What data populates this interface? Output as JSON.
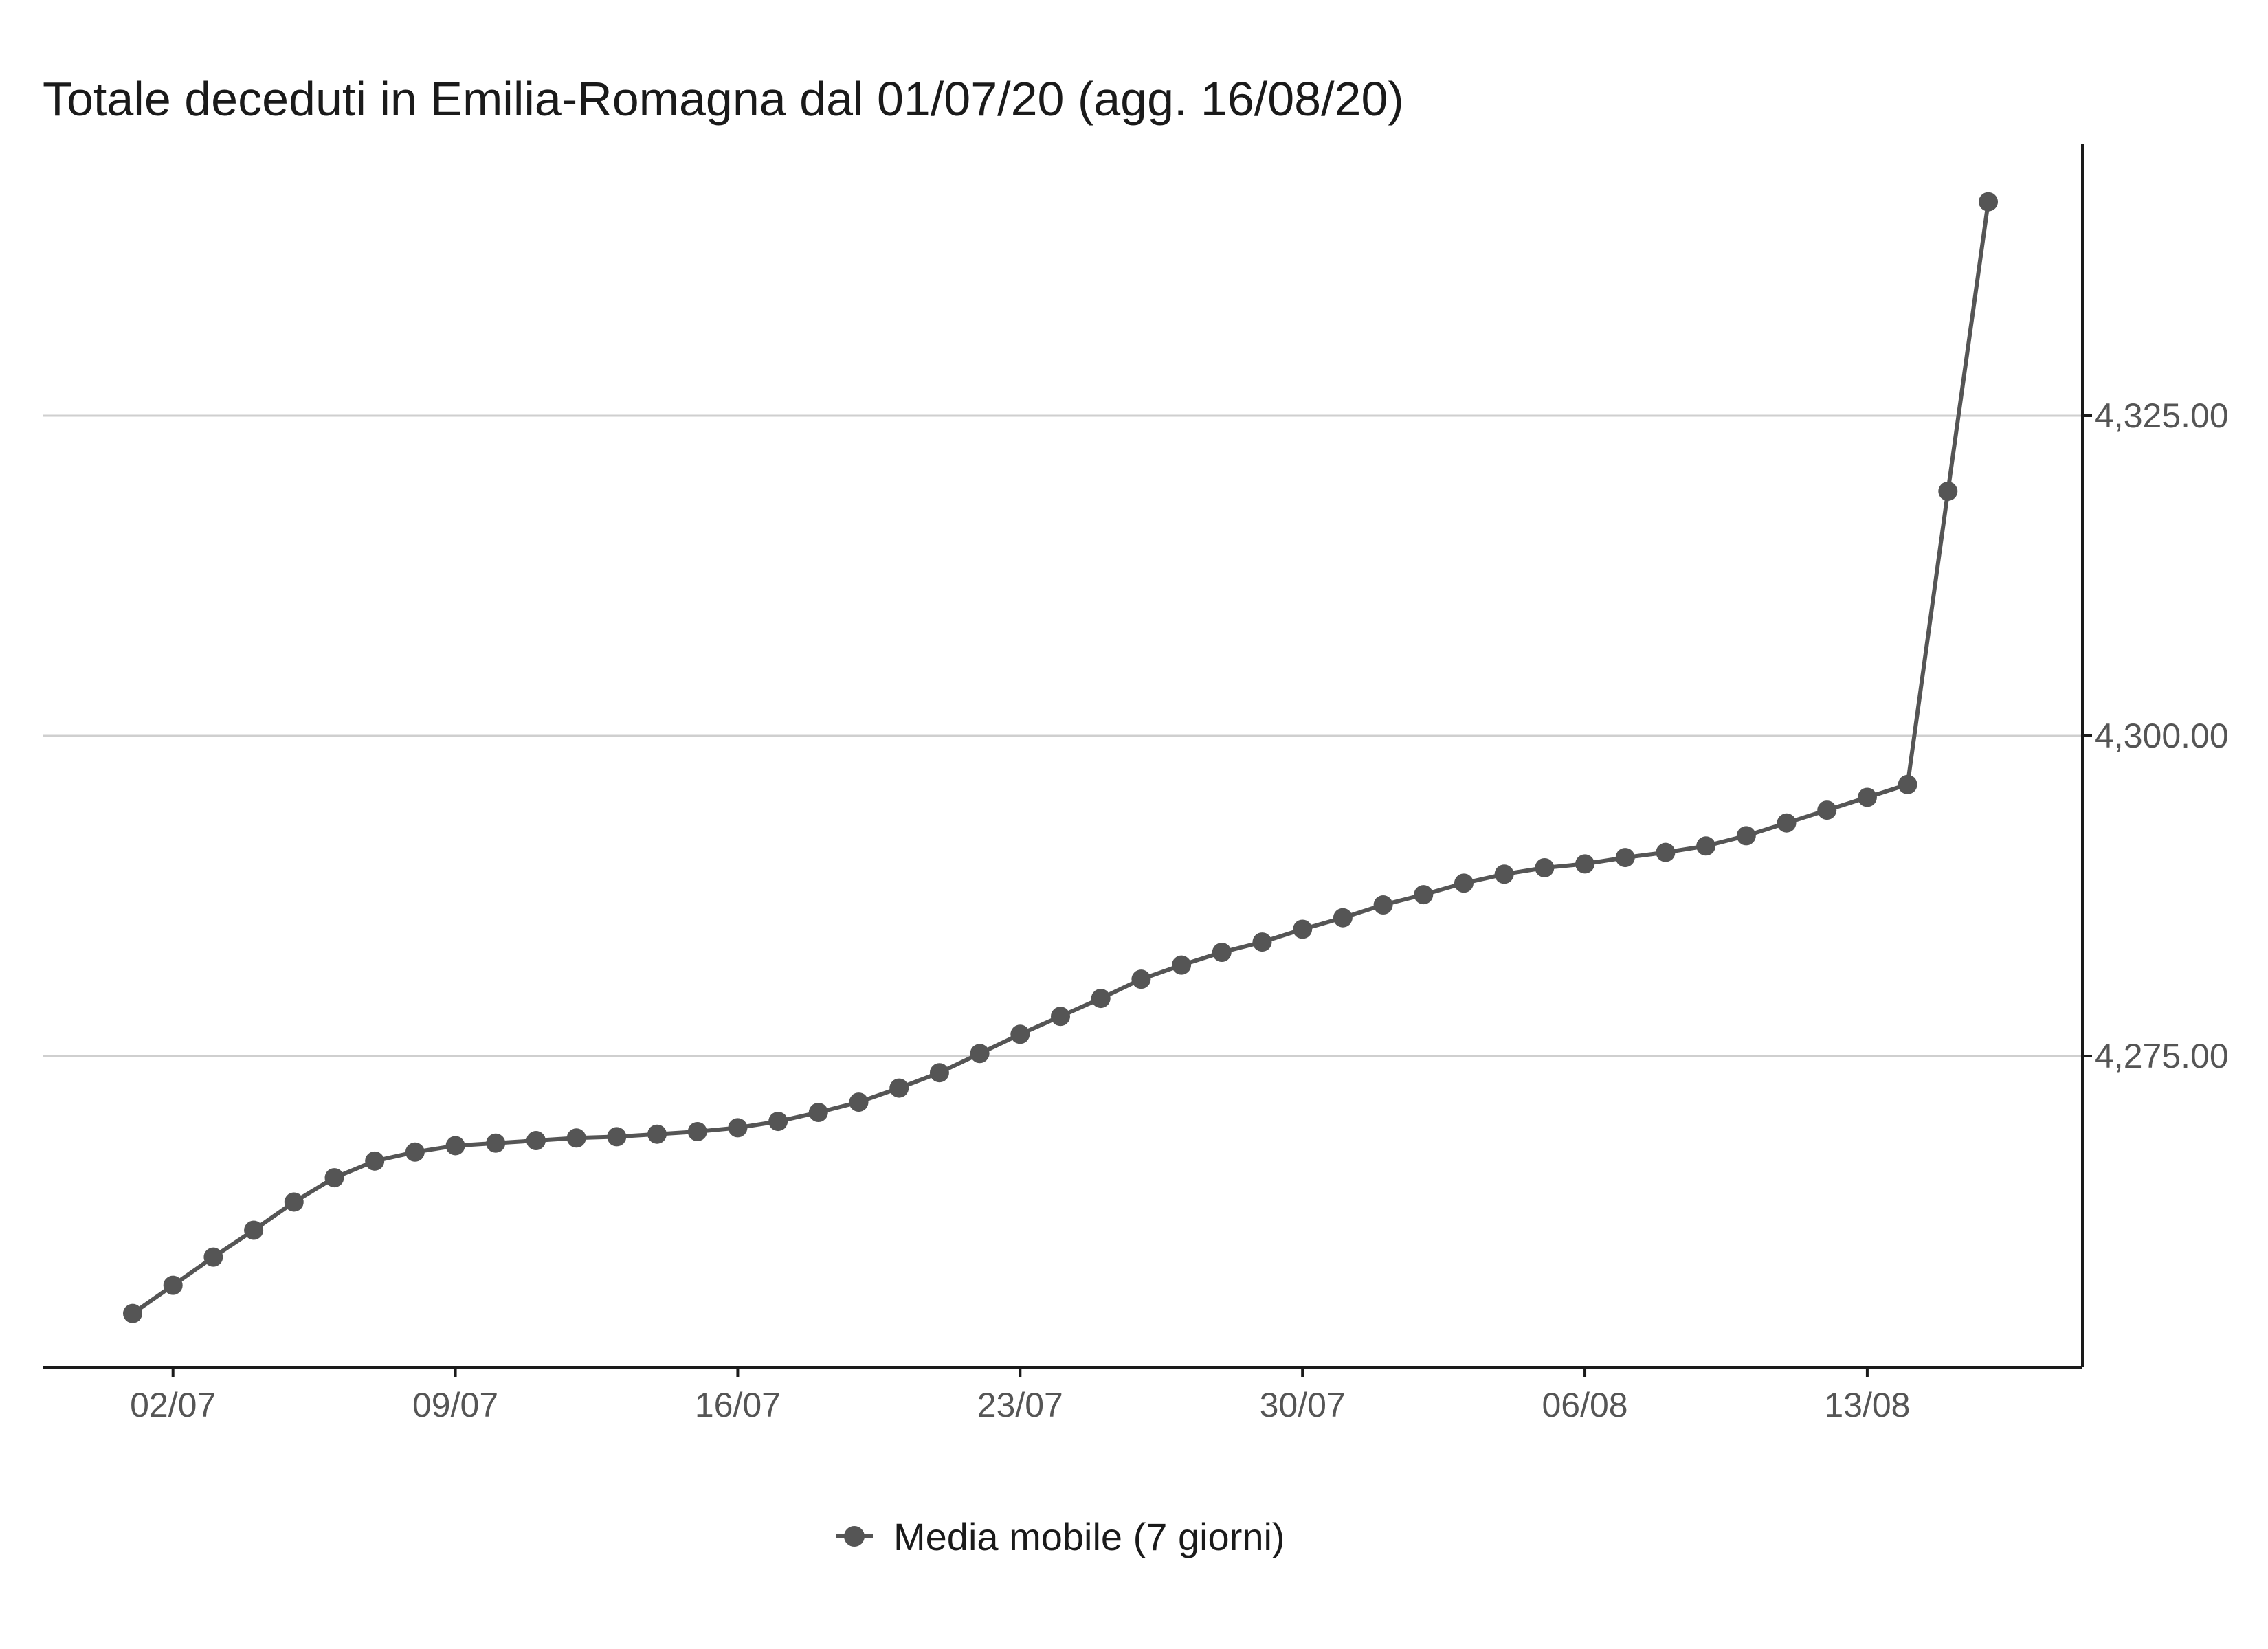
{
  "chart_data": {
    "type": "line",
    "title": "Totale deceduti in Emilia-Romagna dal 01/07/20 (agg. 16/08/20)",
    "xlabel": "",
    "ylabel": "",
    "x": [
      "01/07",
      "02/07",
      "03/07",
      "04/07",
      "05/07",
      "06/07",
      "07/07",
      "08/07",
      "09/07",
      "10/07",
      "11/07",
      "12/07",
      "13/07",
      "14/07",
      "15/07",
      "16/07",
      "17/07",
      "18/07",
      "19/07",
      "20/07",
      "21/07",
      "22/07",
      "23/07",
      "24/07",
      "25/07",
      "26/07",
      "27/07",
      "28/07",
      "29/07",
      "30/07",
      "31/07",
      "01/08",
      "02/08",
      "03/08",
      "04/08",
      "05/08",
      "06/08",
      "07/08",
      "08/08",
      "09/08",
      "10/08",
      "11/08",
      "12/08",
      "13/08",
      "14/08",
      "15/08",
      "16/08"
    ],
    "x_ticks": [
      "02/07",
      "09/07",
      "16/07",
      "23/07",
      "30/07",
      "06/08",
      "13/08"
    ],
    "y_ticks": [
      4275,
      4300,
      4325
    ],
    "y_tick_labels": [
      "4,275.00",
      "4,300.00",
      "4,325.00"
    ],
    "ylim": [
      4254.7,
      4350.3
    ],
    "y_axis_position": "right",
    "grid": "horizontal",
    "legend_position": "bottom",
    "series": [
      {
        "name": "Media mobile (7 giorni)",
        "color": "#555555",
        "marker": "circle",
        "values": [
          4254.9,
          4257.1,
          4259.3,
          4261.4,
          4263.6,
          4265.5,
          4266.8,
          4267.5,
          4268.0,
          4268.2,
          4268.4,
          4268.6,
          4268.7,
          4268.9,
          4269.1,
          4269.4,
          4269.9,
          4270.6,
          4271.4,
          4272.5,
          4273.7,
          4275.2,
          4276.7,
          4278.1,
          4279.5,
          4281.0,
          4282.1,
          4283.1,
          4283.9,
          4284.9,
          4285.8,
          4286.8,
          4287.6,
          4288.5,
          4289.2,
          4289.7,
          4290.0,
          4290.5,
          4290.9,
          4291.4,
          4292.2,
          4293.2,
          4294.2,
          4295.2,
          4296.2,
          4319.1,
          4341.7
        ]
      }
    ]
  }
}
